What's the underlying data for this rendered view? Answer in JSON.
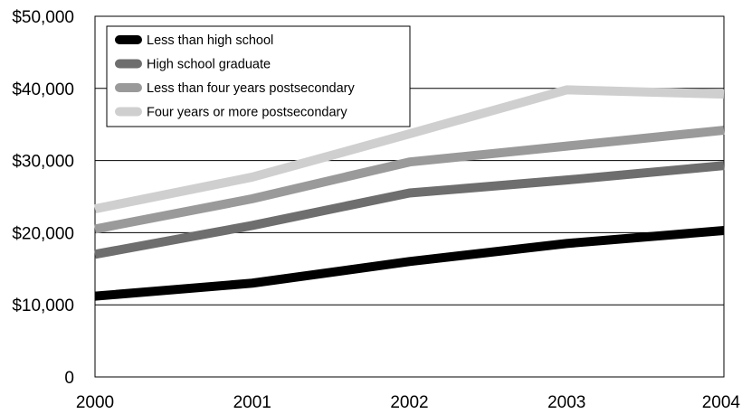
{
  "chart_data": {
    "type": "line",
    "title": "",
    "xlabel": "",
    "ylabel": "",
    "categories": [
      "2000",
      "2001",
      "2002",
      "2003",
      "2004"
    ],
    "ylim": [
      0,
      50000
    ],
    "yticks": [
      0,
      10000,
      20000,
      30000,
      40000,
      50000
    ],
    "ytick_labels": [
      "0",
      "$10,000",
      "$20,000",
      "$30,000",
      "$40,000",
      "$50,000"
    ],
    "grid": "horizontal",
    "legend_position": "top-left",
    "series": [
      {
        "name": "Less than high school",
        "color": "#000000",
        "values": [
          11200,
          13000,
          16000,
          18500,
          20300
        ]
      },
      {
        "name": "High school graduate",
        "color": "#6e6e6e",
        "values": [
          17000,
          21000,
          25500,
          27300,
          29300
        ]
      },
      {
        "name": "Less than four years postsecondary",
        "color": "#9a9a9a",
        "values": [
          20500,
          24700,
          29800,
          32000,
          34200
        ]
      },
      {
        "name": "Four years or more postsecondary",
        "color": "#cfcfcf",
        "values": [
          23300,
          27700,
          33700,
          39800,
          39200
        ]
      }
    ]
  }
}
